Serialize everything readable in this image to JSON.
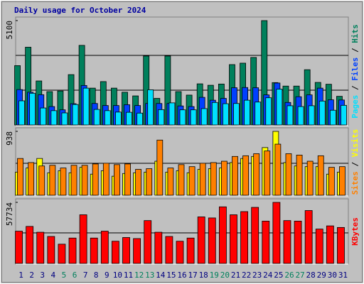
{
  "chart_data": [
    {
      "type": "bar",
      "title": "Daily usage for October 2024",
      "title_color": "#0000a0",
      "legend_separator": " / ",
      "ylim": [
        0,
        5100
      ],
      "yticks": [
        5100
      ],
      "gridlines": [
        1700,
        3400
      ],
      "series": [
        {
          "name": "Hits",
          "color": "#00805c",
          "values": [
            2900,
            3800,
            2150,
            1630,
            1660,
            2460,
            3890,
            1800,
            2120,
            1800,
            1600,
            1420,
            3370,
            1300,
            3370,
            1630,
            1460,
            2010,
            1940,
            2000,
            2950,
            3020,
            3300,
            5100,
            2070,
            1900,
            1900,
            2700,
            2080,
            1990,
            1400
          ]
        },
        {
          "name": "Files",
          "color": "#0040ff",
          "values": [
            1730,
            1600,
            1480,
            900,
            740,
            1040,
            1930,
            1050,
            950,
            950,
            990,
            950,
            1050,
            1050,
            1050,
            930,
            900,
            1350,
            1210,
            1300,
            1820,
            1830,
            1820,
            1470,
            2050,
            1100,
            1380,
            1470,
            1800,
            1230,
            1220
          ]
        },
        {
          "name": "Pages",
          "color": "#00e0ff",
          "values": [
            1180,
            1550,
            830,
            700,
            590,
            1000,
            1800,
            760,
            700,
            630,
            620,
            580,
            1720,
            750,
            1080,
            740,
            740,
            800,
            1100,
            1040,
            1050,
            1210,
            1120,
            1330,
            1750,
            940,
            900,
            940,
            1170,
            720,
            960
          ]
        }
      ]
    },
    {
      "type": "bar",
      "legend_separator": " / ",
      "ylim": [
        0,
        938
      ],
      "yticks": [
        938
      ],
      "gridlines": [
        469
      ],
      "series": [
        {
          "name": "Visits",
          "color": "#ffff00",
          "values": [
            340,
            400,
            540,
            330,
            360,
            330,
            410,
            310,
            360,
            280,
            320,
            330,
            340,
            500,
            340,
            360,
            330,
            380,
            390,
            400,
            480,
            540,
            570,
            700,
            938,
            480,
            430,
            420,
            420,
            310,
            340
          ]
        },
        {
          "name": "Sites",
          "color": "#ff8000",
          "values": [
            540,
            480,
            430,
            440,
            400,
            440,
            440,
            460,
            470,
            450,
            460,
            380,
            390,
            810,
            400,
            450,
            420,
            470,
            480,
            500,
            570,
            580,
            610,
            650,
            750,
            610,
            590,
            500,
            580,
            410,
            420
          ]
        }
      ]
    },
    {
      "type": "bar",
      "ylim": [
        0,
        57734
      ],
      "yticks": [
        57734
      ],
      "gridlines": [
        28867
      ],
      "categories": [
        "1",
        "2",
        "3",
        "4",
        "5",
        "6",
        "7",
        "8",
        "9",
        "10",
        "11",
        "12",
        "13",
        "14",
        "15",
        "16",
        "17",
        "18",
        "19",
        "20",
        "21",
        "22",
        "23",
        "24",
        "25",
        "26",
        "27",
        "28",
        "29",
        "30",
        "31"
      ],
      "category_colors": [
        "#000080",
        "#000080",
        "#000080",
        "#000080",
        "#00805c",
        "#00805c",
        "#000080",
        "#000080",
        "#000080",
        "#000080",
        "#000080",
        "#00805c",
        "#00805c",
        "#000080",
        "#000080",
        "#000080",
        "#000080",
        "#000080",
        "#00805c",
        "#00805c",
        "#000080",
        "#000080",
        "#000080",
        "#000080",
        "#000080",
        "#00805c",
        "#00805c",
        "#000080",
        "#000080",
        "#000080",
        "#000080"
      ],
      "series": [
        {
          "name": "KBytes",
          "color": "#ff0000",
          "values": [
            30500,
            35000,
            29500,
            25500,
            18200,
            24000,
            46000,
            24000,
            30500,
            21000,
            24500,
            23500,
            40500,
            29500,
            25500,
            21000,
            24000,
            44000,
            43000,
            53500,
            46000,
            49000,
            53000,
            40000,
            57734,
            40500,
            40000,
            50000,
            32500,
            35500,
            34000
          ]
        }
      ]
    }
  ]
}
